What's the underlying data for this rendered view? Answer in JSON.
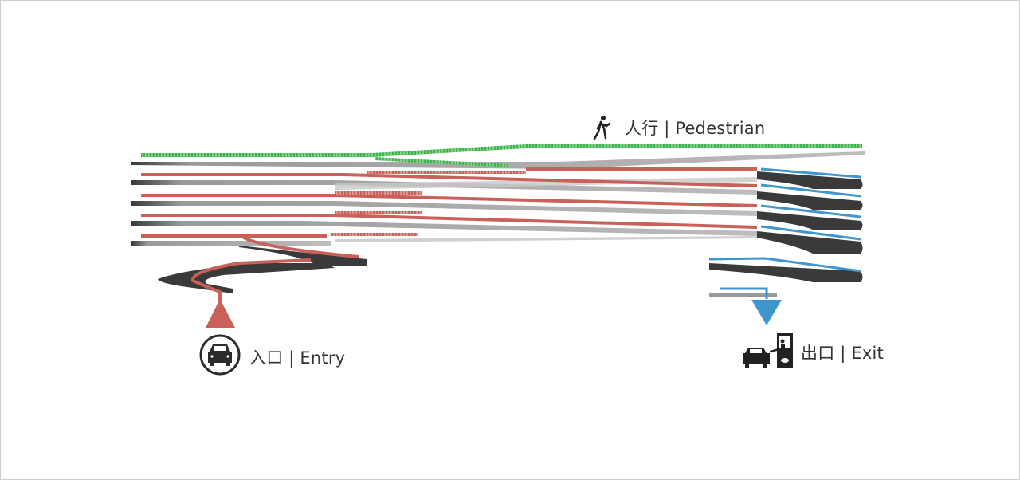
{
  "labels": {
    "pedestrian": "人行 | Pedestrian",
    "entry": "入口 | Entry",
    "exit": "出口 | Exit"
  },
  "icons": {
    "pedestrian": "walking-person-icon",
    "entry": "car-in-circle-icon",
    "exit": "car-at-toll-booth-icon"
  },
  "colors": {
    "pedestrian_path": "#3db54a",
    "entry_path": "#c9605a",
    "exit_path": "#3f96cf",
    "ramp_dark": "#3a3a3a",
    "ramp_light": "#b8b8b8"
  }
}
